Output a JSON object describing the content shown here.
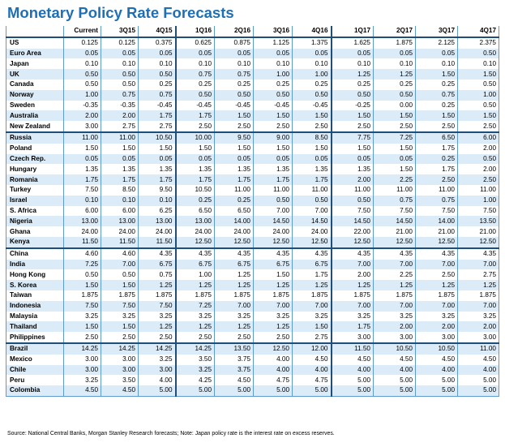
{
  "title": "Monetary Policy Rate Forecasts",
  "columns": [
    "Current",
    "3Q15",
    "4Q15",
    "1Q16",
    "2Q16",
    "3Q16",
    "4Q16",
    "1Q17",
    "2Q17",
    "3Q17",
    "4Q17"
  ],
  "groups": [
    {
      "rows": [
        {
          "country": "US",
          "values": [
            "0.125",
            "0.125",
            "0.375",
            "0.625",
            "0.875",
            "1.125",
            "1.375",
            "1.625",
            "1.875",
            "2.125",
            "2.375"
          ]
        },
        {
          "country": "Euro Area",
          "values": [
            "0.05",
            "0.05",
            "0.05",
            "0.05",
            "0.05",
            "0.05",
            "0.05",
            "0.05",
            "0.05",
            "0.05",
            "0.50"
          ]
        },
        {
          "country": "Japan",
          "values": [
            "0.10",
            "0.10",
            "0.10",
            "0.10",
            "0.10",
            "0.10",
            "0.10",
            "0.10",
            "0.10",
            "0.10",
            "0.10"
          ]
        },
        {
          "country": "UK",
          "values": [
            "0.50",
            "0.50",
            "0.50",
            "0.75",
            "0.75",
            "1.00",
            "1.00",
            "1.25",
            "1.25",
            "1.50",
            "1.50"
          ]
        },
        {
          "country": "Canada",
          "values": [
            "0.50",
            "0.50",
            "0.25",
            "0.25",
            "0.25",
            "0.25",
            "0.25",
            "0.25",
            "0.25",
            "0.25",
            "0.50"
          ]
        },
        {
          "country": "Norway",
          "values": [
            "1.00",
            "0.75",
            "0.75",
            "0.50",
            "0.50",
            "0.50",
            "0.50",
            "0.50",
            "0.50",
            "0.75",
            "1.00"
          ]
        },
        {
          "country": "Sweden",
          "values": [
            "-0.35",
            "-0.35",
            "-0.45",
            "-0.45",
            "-0.45",
            "-0.45",
            "-0.45",
            "-0.25",
            "0.00",
            "0.25",
            "0.50"
          ]
        },
        {
          "country": "Australia",
          "values": [
            "2.00",
            "2.00",
            "1.75",
            "1.75",
            "1.50",
            "1.50",
            "1.50",
            "1.50",
            "1.50",
            "1.50",
            "1.50"
          ]
        },
        {
          "country": "New Zealand",
          "values": [
            "3.00",
            "2.75",
            "2.75",
            "2.50",
            "2.50",
            "2.50",
            "2.50",
            "2.50",
            "2.50",
            "2.50",
            "2.50"
          ]
        }
      ]
    },
    {
      "rows": [
        {
          "country": "Russia",
          "values": [
            "11.00",
            "11.00",
            "10.50",
            "10.00",
            "9.50",
            "9.00",
            "8.50",
            "7.75",
            "7.25",
            "6.50",
            "6.00"
          ]
        },
        {
          "country": "Poland",
          "values": [
            "1.50",
            "1.50",
            "1.50",
            "1.50",
            "1.50",
            "1.50",
            "1.50",
            "1.50",
            "1.50",
            "1.75",
            "2.00"
          ]
        },
        {
          "country": "Czech Rep.",
          "values": [
            "0.05",
            "0.05",
            "0.05",
            "0.05",
            "0.05",
            "0.05",
            "0.05",
            "0.05",
            "0.05",
            "0.25",
            "0.50"
          ]
        },
        {
          "country": "Hungary",
          "values": [
            "1.35",
            "1.35",
            "1.35",
            "1.35",
            "1.35",
            "1.35",
            "1.35",
            "1.35",
            "1.50",
            "1.75",
            "2.00"
          ]
        },
        {
          "country": "Romania",
          "values": [
            "1.75",
            "1.75",
            "1.75",
            "1.75",
            "1.75",
            "1.75",
            "1.75",
            "2.00",
            "2.25",
            "2.50",
            "2.50"
          ]
        },
        {
          "country": "Turkey",
          "values": [
            "7.50",
            "8.50",
            "9.50",
            "10.50",
            "11.00",
            "11.00",
            "11.00",
            "11.00",
            "11.00",
            "11.00",
            "11.00"
          ]
        },
        {
          "country": "Israel",
          "values": [
            "0.10",
            "0.10",
            "0.10",
            "0.25",
            "0.25",
            "0.50",
            "0.50",
            "0.50",
            "0.75",
            "0.75",
            "1.00"
          ]
        },
        {
          "country": "S. Africa",
          "values": [
            "6.00",
            "6.00",
            "6.25",
            "6.50",
            "6.50",
            "7.00",
            "7.00",
            "7.50",
            "7.50",
            "7.50",
            "7.50"
          ]
        },
        {
          "country": "Nigeria",
          "values": [
            "13.00",
            "13.00",
            "13.00",
            "13.00",
            "14.00",
            "14.50",
            "14.50",
            "14.50",
            "14.50",
            "14.00",
            "13.50"
          ]
        },
        {
          "country": "Ghana",
          "values": [
            "24.00",
            "24.00",
            "24.00",
            "24.00",
            "24.00",
            "24.00",
            "24.00",
            "22.00",
            "21.00",
            "21.00",
            "21.00"
          ]
        },
        {
          "country": "Kenya",
          "values": [
            "11.50",
            "11.50",
            "11.50",
            "12.50",
            "12.50",
            "12.50",
            "12.50",
            "12.50",
            "12.50",
            "12.50",
            "12.50"
          ]
        }
      ]
    },
    {
      "rows": [
        {
          "country": "China",
          "values": [
            "4.60",
            "4.60",
            "4.35",
            "4.35",
            "4.35",
            "4.35",
            "4.35",
            "4.35",
            "4.35",
            "4.35",
            "4.35"
          ]
        },
        {
          "country": "India",
          "values": [
            "7.25",
            "7.00",
            "6.75",
            "6.75",
            "6.75",
            "6.75",
            "6.75",
            "7.00",
            "7.00",
            "7.00",
            "7.00"
          ]
        },
        {
          "country": "Hong Kong",
          "values": [
            "0.50",
            "0.50",
            "0.75",
            "1.00",
            "1.25",
            "1.50",
            "1.75",
            "2.00",
            "2.25",
            "2.50",
            "2.75"
          ]
        },
        {
          "country": "S. Korea",
          "values": [
            "1.50",
            "1.50",
            "1.25",
            "1.25",
            "1.25",
            "1.25",
            "1.25",
            "1.25",
            "1.25",
            "1.25",
            "1.25"
          ]
        },
        {
          "country": "Taiwan",
          "values": [
            "1.875",
            "1.875",
            "1.875",
            "1.875",
            "1.875",
            "1.875",
            "1.875",
            "1.875",
            "1.875",
            "1.875",
            "1.875"
          ]
        },
        {
          "country": "Indonesia",
          "values": [
            "7.50",
            "7.50",
            "7.50",
            "7.25",
            "7.00",
            "7.00",
            "7.00",
            "7.00",
            "7.00",
            "7.00",
            "7.00"
          ]
        },
        {
          "country": "Malaysia",
          "values": [
            "3.25",
            "3.25",
            "3.25",
            "3.25",
            "3.25",
            "3.25",
            "3.25",
            "3.25",
            "3.25",
            "3.25",
            "3.25"
          ]
        },
        {
          "country": "Thailand",
          "values": [
            "1.50",
            "1.50",
            "1.25",
            "1.25",
            "1.25",
            "1.25",
            "1.50",
            "1.75",
            "2.00",
            "2.00",
            "2.00"
          ]
        },
        {
          "country": "Philippines",
          "values": [
            "2.50",
            "2.50",
            "2.50",
            "2.50",
            "2.50",
            "2.50",
            "2.75",
            "3.00",
            "3.00",
            "3.00",
            "3.00"
          ]
        }
      ]
    },
    {
      "rows": [
        {
          "country": "Brazil",
          "values": [
            "14.25",
            "14.25",
            "14.25",
            "14.25",
            "13.50",
            "12.50",
            "12.00",
            "11.50",
            "10.50",
            "10.50",
            "11.00"
          ]
        },
        {
          "country": "Mexico",
          "values": [
            "3.00",
            "3.00",
            "3.25",
            "3.50",
            "3.75",
            "4.00",
            "4.50",
            "4.50",
            "4.50",
            "4.50",
            "4.50"
          ]
        },
        {
          "country": "Chile",
          "values": [
            "3.00",
            "3.00",
            "3.00",
            "3.25",
            "3.75",
            "4.00",
            "4.00",
            "4.00",
            "4.00",
            "4.00",
            "4.00"
          ]
        },
        {
          "country": "Peru",
          "values": [
            "3.25",
            "3.50",
            "4.00",
            "4.25",
            "4.50",
            "4.75",
            "4.75",
            "5.00",
            "5.00",
            "5.00",
            "5.00"
          ]
        },
        {
          "country": "Colombia",
          "values": [
            "4.50",
            "4.50",
            "5.00",
            "5.00",
            "5.00",
            "5.00",
            "5.00",
            "5.00",
            "5.00",
            "5.00",
            "5.00"
          ]
        }
      ]
    }
  ],
  "source": "Source: National Central Banks, Morgan Stanley Research forecasts; Note: Japan policy rate is the interest rate on excess reserves."
}
